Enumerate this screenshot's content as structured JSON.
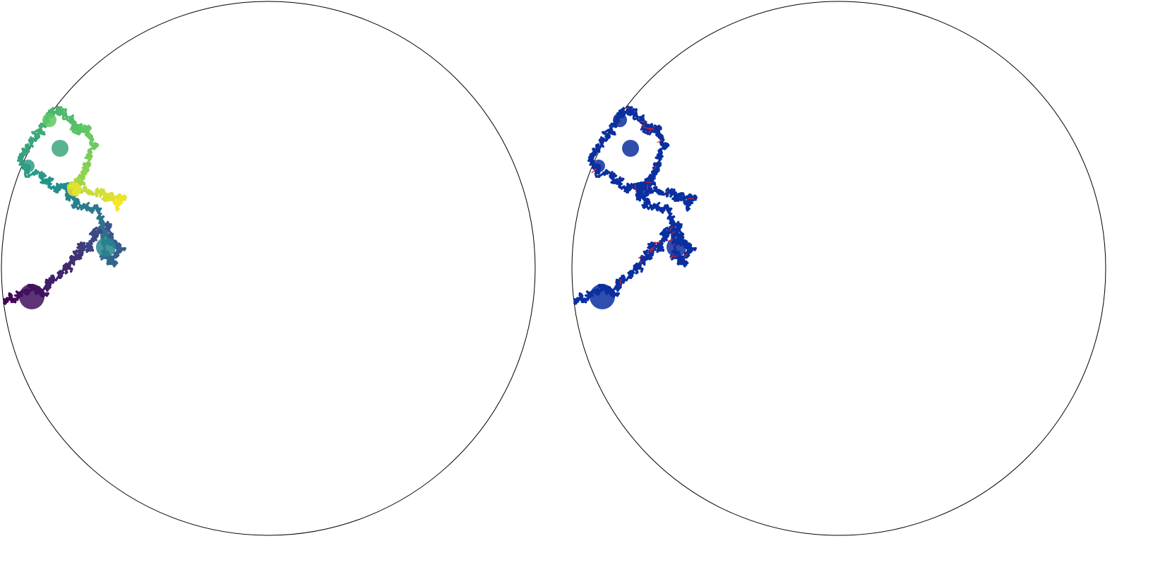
{
  "panels": [
    {
      "id": "colored-walk",
      "boundary_color": "#000000",
      "path_coloring": "viridis-gradient",
      "gradient_colors": [
        "#440154",
        "#3b528b",
        "#21918c",
        "#5ec962",
        "#fde725"
      ]
    },
    {
      "id": "blue-walk",
      "boundary_color": "#000000",
      "path_color": "#0a2fa0",
      "highlight_color": "#e0202a"
    }
  ]
}
